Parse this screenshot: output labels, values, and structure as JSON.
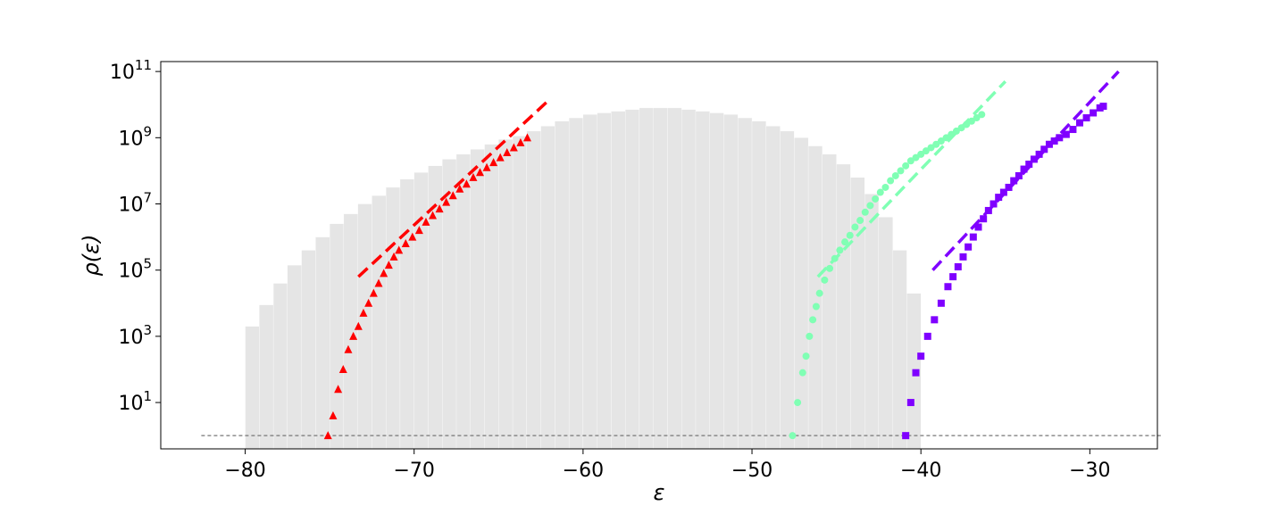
{
  "chart_data": {
    "type": "bar",
    "xlabel": "ε",
    "ylabel": "ρ(ε)",
    "yscale": "log",
    "xlim": [
      -85.0,
      -26.0
    ],
    "ylim_log10": [
      -0.4,
      11.3
    ],
    "grid": false,
    "xticks": [
      -80,
      -70,
      -60,
      -50,
      -40,
      -30
    ],
    "xtick_labels": [
      "−80",
      "−70",
      "−60",
      "−50",
      "−40",
      "−30"
    ],
    "yticks": [
      {
        "value": 10.0,
        "base": "10",
        "exponent": "1"
      },
      {
        "value": 1000.0,
        "base": "10",
        "exponent": "3"
      },
      {
        "value": 100000.0,
        "base": "10",
        "exponent": "5"
      },
      {
        "value": 10000000.0,
        "base": "10",
        "exponent": "7"
      },
      {
        "value": 1000000000.0,
        "base": "10",
        "exponent": "9"
      },
      {
        "value": 100000000000.0,
        "base": "10",
        "exponent": "11"
      }
    ],
    "histogram": {
      "color": "#e5e5e5",
      "bin_width": 0.8333,
      "left_edges": [
        -80.0,
        -79.1667,
        -78.3333,
        -77.5,
        -76.6667,
        -75.8333,
        -75.0,
        -74.1667,
        -73.3333,
        -72.5,
        -71.6667,
        -70.8333,
        -70.0,
        -69.1667,
        -68.3333,
        -67.5,
        -66.6667,
        -65.8333,
        -65.0,
        -64.1667,
        -63.3333,
        -62.5,
        -61.6667,
        -60.8333,
        -60.0,
        -59.1667,
        -58.3333,
        -57.5,
        -56.6667,
        -55.8333,
        -55.0,
        -54.1667,
        -53.3333,
        -52.5,
        -51.6667,
        -50.8333,
        -50.0,
        -49.1667,
        -48.3333,
        -47.5,
        -46.6667,
        -45.8333,
        -45.0,
        -44.1667,
        -43.3333,
        -42.5,
        -41.6667,
        -40.8333
      ],
      "log10_counts": [
        3.3,
        3.95,
        4.6,
        5.15,
        5.6,
        6.0,
        6.4,
        6.7,
        7.0,
        7.25,
        7.5,
        7.75,
        7.95,
        8.15,
        8.35,
        8.5,
        8.65,
        8.8,
        8.95,
        9.05,
        9.2,
        9.35,
        9.5,
        9.6,
        9.7,
        9.75,
        9.8,
        9.85,
        9.9,
        9.9,
        9.9,
        9.85,
        9.8,
        9.75,
        9.7,
        9.6,
        9.5,
        9.35,
        9.2,
        9.0,
        8.75,
        8.5,
        8.2,
        7.8,
        7.3,
        6.6,
        5.6,
        4.3
      ]
    },
    "reference_line": {
      "y": 1,
      "x_range": [
        -82.6,
        -25.8
      ],
      "style": "dashed",
      "color": "#777777"
    },
    "series": [
      {
        "marker": "triangle",
        "color": "#ff0000",
        "points": [
          [
            -75.1,
            0.0
          ],
          [
            -74.8,
            0.6
          ],
          [
            -74.5,
            1.4
          ],
          [
            -74.2,
            2.0
          ],
          [
            -73.9,
            2.6
          ],
          [
            -73.6,
            3.0
          ],
          [
            -73.3,
            3.3
          ],
          [
            -73.0,
            3.7
          ],
          [
            -72.7,
            4.0
          ],
          [
            -72.4,
            4.3
          ],
          [
            -72.1,
            4.6
          ],
          [
            -71.8,
            4.9
          ],
          [
            -71.5,
            5.15
          ],
          [
            -71.2,
            5.4
          ],
          [
            -70.9,
            5.6
          ],
          [
            -70.5,
            5.8
          ],
          [
            -70.1,
            6.0
          ],
          [
            -69.7,
            6.2
          ],
          [
            -69.3,
            6.45
          ],
          [
            -68.9,
            6.65
          ],
          [
            -68.5,
            6.85
          ],
          [
            -68.1,
            7.05
          ],
          [
            -67.7,
            7.25
          ],
          [
            -67.3,
            7.45
          ],
          [
            -66.9,
            7.6
          ],
          [
            -66.5,
            7.8
          ],
          [
            -66.1,
            7.95
          ],
          [
            -65.7,
            8.1
          ],
          [
            -65.3,
            8.25
          ],
          [
            -64.9,
            8.4
          ],
          [
            -64.5,
            8.55
          ],
          [
            -64.1,
            8.7
          ],
          [
            -63.7,
            8.85
          ],
          [
            -63.3,
            9.0
          ]
        ],
        "fit": [
          [
            -73.3,
            4.8
          ],
          [
            -62.1,
            10.1
          ]
        ]
      },
      {
        "marker": "circle",
        "color": "#80ffb4",
        "points": [
          [
            -47.6,
            0.0
          ],
          [
            -47.3,
            1.0
          ],
          [
            -47.0,
            1.9
          ],
          [
            -46.8,
            2.4
          ],
          [
            -46.6,
            3.0
          ],
          [
            -46.4,
            3.5
          ],
          [
            -46.2,
            3.9
          ],
          [
            -46.0,
            4.3
          ],
          [
            -45.7,
            4.7
          ],
          [
            -45.4,
            5.05
          ],
          [
            -45.1,
            5.35
          ],
          [
            -44.8,
            5.6
          ],
          [
            -44.5,
            5.85
          ],
          [
            -44.2,
            6.05
          ],
          [
            -43.9,
            6.3
          ],
          [
            -43.6,
            6.5
          ],
          [
            -43.3,
            6.75
          ],
          [
            -43.0,
            6.95
          ],
          [
            -42.7,
            7.15
          ],
          [
            -42.4,
            7.35
          ],
          [
            -42.1,
            7.5
          ],
          [
            -41.8,
            7.7
          ],
          [
            -41.5,
            7.85
          ],
          [
            -41.2,
            8.0
          ],
          [
            -40.9,
            8.15
          ],
          [
            -40.6,
            8.3
          ],
          [
            -40.3,
            8.4
          ],
          [
            -40.0,
            8.5
          ],
          [
            -39.7,
            8.6
          ],
          [
            -39.4,
            8.7
          ],
          [
            -39.1,
            8.8
          ],
          [
            -38.8,
            8.9
          ],
          [
            -38.5,
            9.0
          ],
          [
            -38.2,
            9.1
          ],
          [
            -37.9,
            9.2
          ],
          [
            -37.6,
            9.3
          ],
          [
            -37.3,
            9.4
          ],
          [
            -37.0,
            9.5
          ],
          [
            -36.7,
            9.6
          ],
          [
            -36.4,
            9.7
          ]
        ],
        "fit": [
          [
            -46.1,
            4.8
          ],
          [
            -35.0,
            10.7
          ]
        ]
      },
      {
        "marker": "square",
        "color": "#7f00ff",
        "points": [
          [
            -40.9,
            0.0
          ],
          [
            -40.6,
            1.0
          ],
          [
            -40.3,
            1.9
          ],
          [
            -40.0,
            2.4
          ],
          [
            -39.6,
            3.0
          ],
          [
            -39.2,
            3.5
          ],
          [
            -38.8,
            4.0
          ],
          [
            -38.4,
            4.5
          ],
          [
            -38.1,
            4.8
          ],
          [
            -37.8,
            5.1
          ],
          [
            -37.5,
            5.4
          ],
          [
            -37.2,
            5.7
          ],
          [
            -36.9,
            6.0
          ],
          [
            -36.6,
            6.3
          ],
          [
            -36.3,
            6.55
          ],
          [
            -36.0,
            6.8
          ],
          [
            -35.7,
            7.0
          ],
          [
            -35.4,
            7.2
          ],
          [
            -35.1,
            7.35
          ],
          [
            -34.8,
            7.5
          ],
          [
            -34.5,
            7.7
          ],
          [
            -34.2,
            7.85
          ],
          [
            -33.9,
            8.05
          ],
          [
            -33.6,
            8.2
          ],
          [
            -33.3,
            8.35
          ],
          [
            -33.0,
            8.5
          ],
          [
            -32.7,
            8.65
          ],
          [
            -32.4,
            8.8
          ],
          [
            -32.1,
            8.9
          ],
          [
            -31.8,
            9.0
          ],
          [
            -31.4,
            9.1
          ],
          [
            -31.0,
            9.25
          ],
          [
            -30.6,
            9.45
          ],
          [
            -30.2,
            9.6
          ],
          [
            -29.8,
            9.75
          ],
          [
            -29.4,
            9.9
          ],
          [
            -29.2,
            9.95
          ]
        ],
        "fit": [
          [
            -39.3,
            5.0
          ],
          [
            -28.3,
            11.0
          ]
        ]
      }
    ]
  }
}
